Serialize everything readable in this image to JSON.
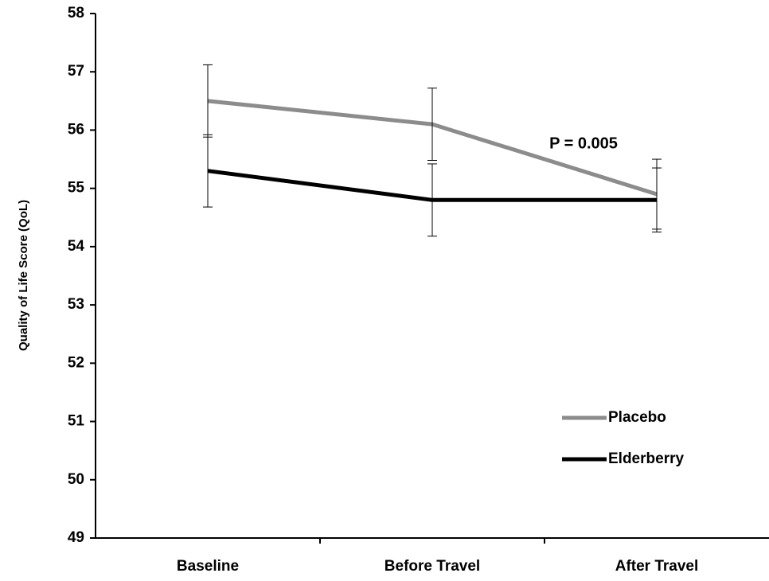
{
  "chart_data": {
    "type": "line",
    "y_label": "Quality of Life Score (QoL)",
    "annotation": "P = 0.005",
    "categories": [
      "Baseline",
      "Before Travel",
      "After Travel"
    ],
    "series": [
      {
        "name": "Placebo",
        "color": "#8c8c8c",
        "values": [
          56.5,
          56.1,
          54.9
        ],
        "errors": [
          0.62,
          0.62,
          0.6
        ]
      },
      {
        "name": "Elderberry",
        "color": "#000000",
        "values": [
          55.3,
          54.8,
          54.8
        ],
        "errors": [
          0.62,
          0.62,
          0.55
        ]
      }
    ],
    "ylim": [
      49,
      58
    ],
    "yticks": [
      49,
      50,
      51,
      52,
      53,
      54,
      55,
      56,
      57,
      58
    ],
    "grid": false,
    "legend": "lower right"
  }
}
